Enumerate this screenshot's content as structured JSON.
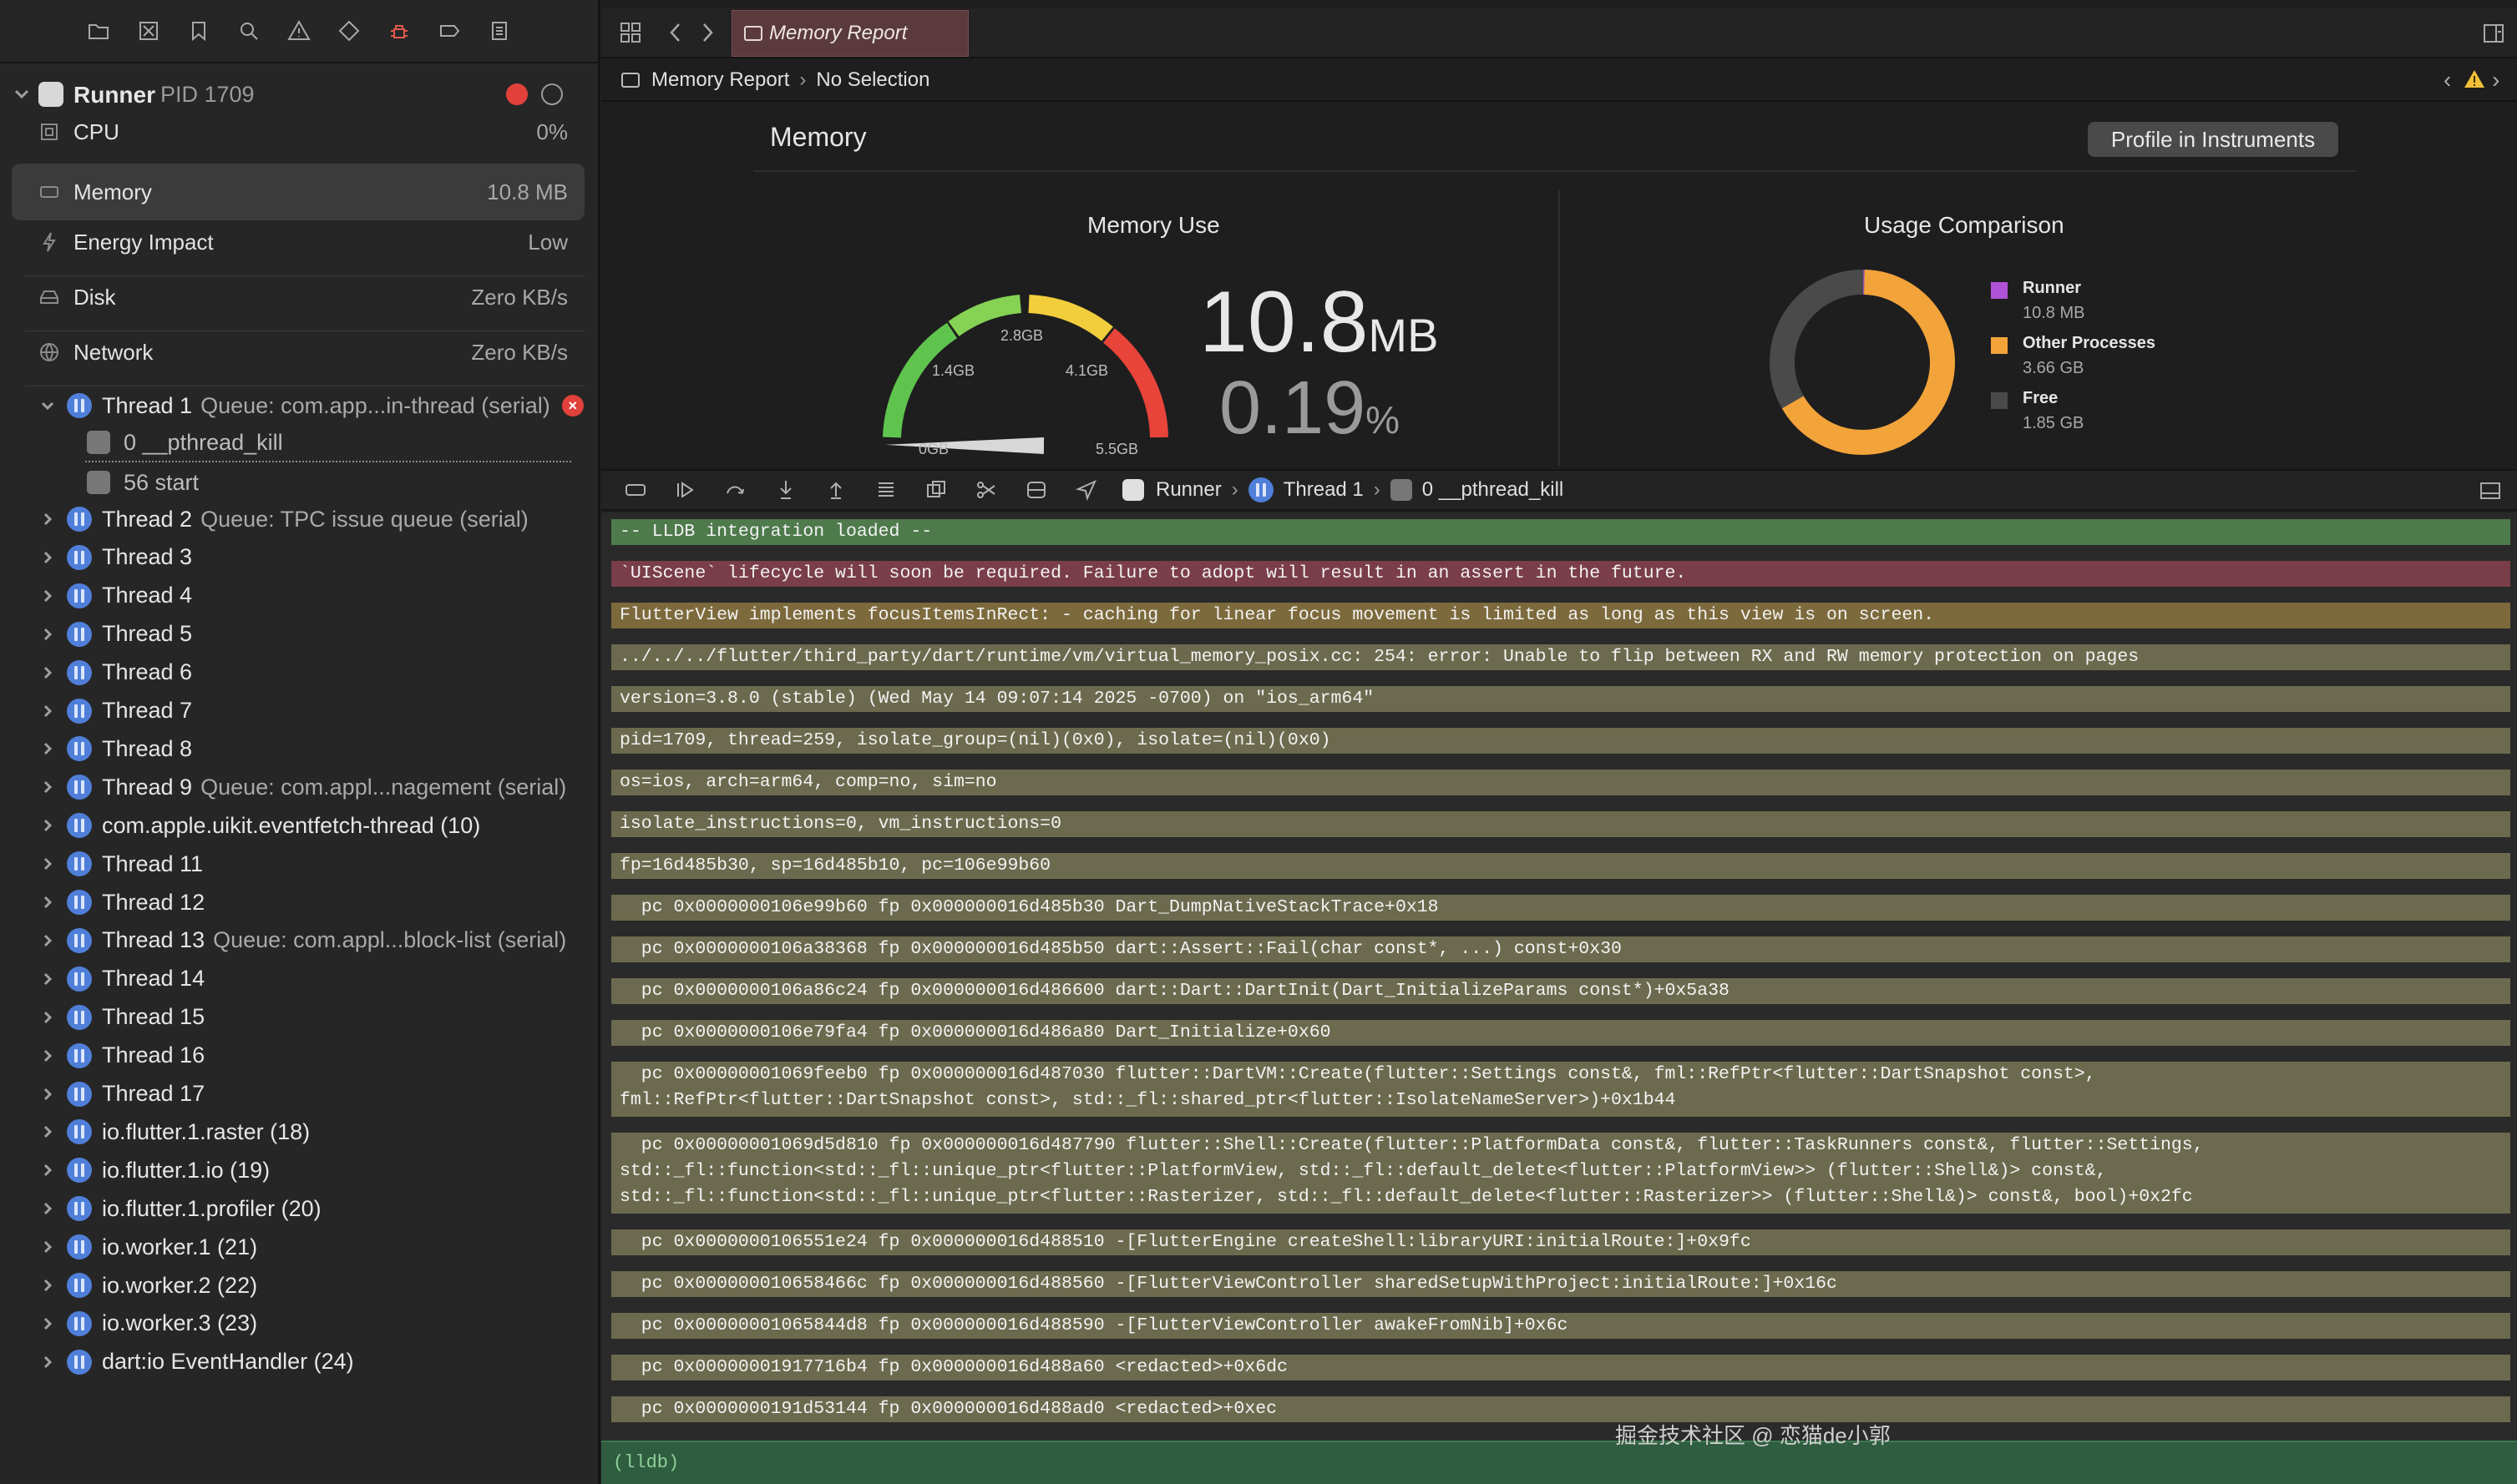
{
  "navigator": {
    "toolbar_icons": [
      "folder-icon",
      "source-control-icon",
      "bookmark-icon",
      "search-icon",
      "warning-icon",
      "test-icon",
      "debug-icon",
      "breakpoint-icon",
      "report-icon"
    ],
    "process": {
      "name": "Runner",
      "pid": "PID 1709"
    },
    "gauges": [
      {
        "name": "CPU",
        "value": "0%"
      },
      {
        "name": "Memory",
        "value": "10.8 MB"
      },
      {
        "name": "Energy Impact",
        "value": "Low"
      },
      {
        "name": "Disk",
        "value": "Zero KB/s"
      },
      {
        "name": "Network",
        "value": "Zero KB/s"
      }
    ],
    "thread1": {
      "name": "Thread 1",
      "queue": "Queue: com.app...in-thread (serial)"
    },
    "frames": [
      "0 __pthread_kill",
      "56 start"
    ],
    "threads": [
      {
        "name": "Thread 2",
        "queue": "Queue: TPC issue queue (serial)"
      },
      {
        "name": "Thread 3",
        "queue": ""
      },
      {
        "name": "Thread 4",
        "queue": ""
      },
      {
        "name": "Thread 5",
        "queue": ""
      },
      {
        "name": "Thread 6",
        "queue": ""
      },
      {
        "name": "Thread 7",
        "queue": ""
      },
      {
        "name": "Thread 8",
        "queue": ""
      },
      {
        "name": "Thread 9",
        "queue": "Queue: com.appl...nagement (serial)"
      },
      {
        "name": "com.apple.uikit.eventfetch-thread (10)",
        "queue": ""
      },
      {
        "name": "Thread 11",
        "queue": ""
      },
      {
        "name": "Thread 12",
        "queue": ""
      },
      {
        "name": "Thread 13",
        "queue": "Queue: com.appl...block-list (serial)"
      },
      {
        "name": "Thread 14",
        "queue": ""
      },
      {
        "name": "Thread 15",
        "queue": ""
      },
      {
        "name": "Thread 16",
        "queue": ""
      },
      {
        "name": "Thread 17",
        "queue": ""
      },
      {
        "name": "io.flutter.1.raster (18)",
        "queue": ""
      },
      {
        "name": "io.flutter.1.io (19)",
        "queue": ""
      },
      {
        "name": "io.flutter.1.profiler (20)",
        "queue": ""
      },
      {
        "name": "io.worker.1 (21)",
        "queue": ""
      },
      {
        "name": "io.worker.2 (22)",
        "queue": ""
      },
      {
        "name": "io.worker.3 (23)",
        "queue": ""
      },
      {
        "name": "dart:io EventHandler (24)",
        "queue": ""
      }
    ]
  },
  "editor": {
    "tab_title": "Memory Report",
    "jump_bar": {
      "item1": "Memory Report",
      "item2": "No Selection"
    },
    "memory": {
      "title": "Memory",
      "profile_button": "Profile in Instruments",
      "memory_use_title": "Memory Use",
      "usage_title": "Usage Comparison",
      "gauge_labels": {
        "min": "0GB",
        "l1": "1.4GB",
        "l2": "2.8GB",
        "l3": "4.1GB",
        "max": "5.5GB"
      },
      "gauge_fraction": 0.0019,
      "value_number": "10.8",
      "value_unit": "MB",
      "percent_number": "0.19",
      "percent_unit": "%",
      "legend": [
        {
          "name": "Runner",
          "value": "10.8 MB",
          "color": "#b052d6"
        },
        {
          "name": "Other Processes",
          "value": "3.66 GB",
          "color": "#f2a33a"
        },
        {
          "name": "Free",
          "value": "1.85 GB",
          "color": "#4a4a4a"
        }
      ]
    },
    "debug_bar": {
      "crumb1": "Runner",
      "crumb2": "Thread 1",
      "crumb3": "0 __pthread_kill"
    },
    "console": [
      {
        "text": "-- LLDB integration loaded --",
        "kind": "green"
      },
      {
        "text": "`UIScene` lifecycle will soon be required. Failure to adopt will result in an assert in the future.",
        "kind": "red"
      },
      {
        "text": "FlutterView implements focusItemsInRect: - caching for linear focus movement is limited as long as this view is on screen.",
        "kind": "amber"
      },
      {
        "text": "../../../flutter/third_party/dart/runtime/vm/virtual_memory_posix.cc: 254: error: Unable to flip between RX and RW memory protection on pages",
        "kind": "normal"
      },
      {
        "text": "version=3.8.0 (stable) (Wed May 14 09:07:14 2025 -0700) on \"ios_arm64\"",
        "kind": "normal"
      },
      {
        "text": "pid=1709, thread=259, isolate_group=(nil)(0x0), isolate=(nil)(0x0)",
        "kind": "normal"
      },
      {
        "text": "os=ios, arch=arm64, comp=no, sim=no",
        "kind": "normal"
      },
      {
        "text": "isolate_instructions=0, vm_instructions=0",
        "kind": "normal"
      },
      {
        "text": "fp=16d485b30, sp=16d485b10, pc=106e99b60",
        "kind": "normal"
      },
      {
        "text": "  pc 0x0000000106e99b60 fp 0x000000016d485b30 Dart_DumpNativeStackTrace+0x18",
        "kind": "normal"
      },
      {
        "text": "  pc 0x0000000106a38368 fp 0x000000016d485b50 dart::Assert::Fail(char const*, ...) const+0x30",
        "kind": "normal"
      },
      {
        "text": "  pc 0x0000000106a86c24 fp 0x000000016d486600 dart::Dart::DartInit(Dart_InitializeParams const*)+0x5a38",
        "kind": "normal"
      },
      {
        "text": "  pc 0x0000000106e79fa4 fp 0x000000016d486a80 Dart_Initialize+0x60",
        "kind": "normal"
      },
      {
        "text": "  pc 0x00000001069feeb0 fp 0x000000016d487030 flutter::DartVM::Create(flutter::Settings const&, fml::RefPtr<flutter::DartSnapshot const>,\nfml::RefPtr<flutter::DartSnapshot const>, std::_fl::shared_ptr<flutter::IsolateNameServer>)+0x1b44",
        "kind": "normal"
      },
      {
        "text": "  pc 0x00000001069d5d810 fp 0x000000016d487790 flutter::Shell::Create(flutter::PlatformData const&, flutter::TaskRunners const&, flutter::Settings,\nstd::_fl::function<std::_fl::unique_ptr<flutter::PlatformView, std::_fl::default_delete<flutter::PlatformView>> (flutter::Shell&)> const&,\nstd::_fl::function<std::_fl::unique_ptr<flutter::Rasterizer, std::_fl::default_delete<flutter::Rasterizer>> (flutter::Shell&)> const&, bool)+0x2fc",
        "kind": "normal"
      },
      {
        "text": "  pc 0x0000000106551e24 fp 0x000000016d488510 -[FlutterEngine createShell:libraryURI:initialRoute:]+0x9fc",
        "kind": "normal"
      },
      {
        "text": "  pc 0x000000010658466c fp 0x000000016d488560 -[FlutterViewController sharedSetupWithProject:initialRoute:]+0x16c",
        "kind": "normal"
      },
      {
        "text": "  pc 0x00000001065844d8 fp 0x000000016d488590 -[FlutterViewController awakeFromNib]+0x6c",
        "kind": "normal"
      },
      {
        "text": "  pc 0x00000001917716b4 fp 0x000000016d488a60 <redacted>+0x6dc",
        "kind": "normal"
      },
      {
        "text": "  pc 0x0000000191d53144 fp 0x000000016d488ad0 <redacted>+0xec",
        "kind": "normal"
      }
    ],
    "prompt": "(lldb)",
    "watermark": "掘金技术社区 @ 恋猫de小郭"
  }
}
